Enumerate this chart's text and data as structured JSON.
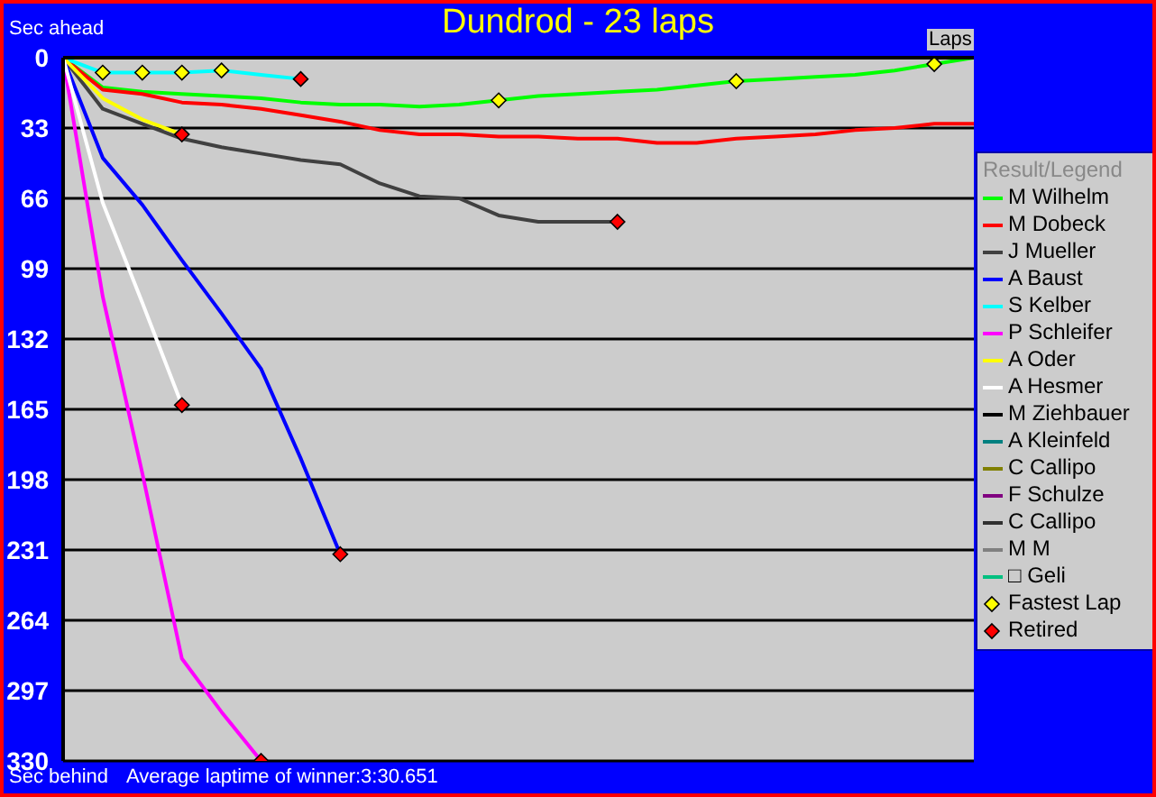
{
  "chart_data": {
    "type": "line",
    "title": "Dundrod - 23 laps",
    "xlabel": "Laps",
    "ylabel": "Sec ahead",
    "legend_title": "Result/Legend",
    "annotations": [
      "Sec behind",
      "Average laptime of winner:3:30.651"
    ],
    "categories": [
      null,
      null,
      null,
      null,
      null,
      null,
      null,
      null,
      null,
      null,
      null,
      null,
      null,
      null,
      null,
      null,
      null,
      null,
      null,
      null,
      null,
      null,
      null,
      null
    ],
    "ylim": [
      330,
      0
    ],
    "yticks": [
      0,
      33,
      66,
      99,
      132,
      165,
      198,
      231,
      264,
      297,
      330
    ],
    "grid": "y",
    "legend": "right",
    "tick_labels": "y",
    "marker": "none",
    "line_style": "solid",
    "series": [
      {
        "name": "M Wilhelm",
        "color": "#00ff00",
        "values": [
          0,
          14,
          16,
          17,
          18,
          19,
          21,
          22,
          22,
          23,
          22,
          20,
          18,
          17,
          16,
          15,
          13,
          11,
          10,
          9,
          8,
          6,
          3,
          0
        ]
      },
      {
        "name": "M Dobeck",
        "color": "#ff0000",
        "values": [
          0,
          15,
          17,
          21,
          22,
          24,
          27,
          30,
          34,
          36,
          36,
          37,
          37,
          38,
          38,
          40,
          40,
          38,
          37,
          36,
          34,
          33,
          31,
          31
        ]
      },
      {
        "name": "J Mueller",
        "color": "#404040",
        "values": [
          0,
          24,
          31,
          38,
          42,
          45,
          48,
          50,
          59,
          65,
          66,
          74,
          77,
          77,
          77,
          null,
          null,
          null,
          null,
          null,
          null,
          null,
          null,
          null
        ]
      },
      {
        "name": "A Baust",
        "color": "#0000ff",
        "values": [
          0,
          47,
          69,
          95,
          120,
          146,
          188,
          233,
          null,
          null,
          null,
          null,
          null,
          null,
          null,
          null,
          null,
          null,
          null,
          null,
          null,
          null,
          null,
          null
        ]
      },
      {
        "name": "S Kelber",
        "color": "#00ffff",
        "values": [
          0,
          7,
          7,
          7,
          6,
          8,
          10,
          null,
          null,
          null,
          null,
          null,
          null,
          null,
          null,
          null,
          null,
          null,
          null,
          null,
          null,
          null,
          null,
          null
        ]
      },
      {
        "name": "P Schleifer",
        "color": "#ff00ff",
        "values": [
          0,
          112,
          195,
          282,
          307,
          330,
          null,
          null,
          null,
          null,
          null,
          null,
          null,
          null,
          null,
          null,
          null,
          null,
          null,
          null,
          null,
          null,
          null,
          null
        ]
      },
      {
        "name": "A Oder",
        "color": "#ffff00",
        "values": [
          0,
          19,
          29,
          36,
          null,
          null,
          null,
          null,
          null,
          null,
          null,
          null,
          null,
          null,
          null,
          null,
          null,
          null,
          null,
          null,
          null,
          null,
          null,
          null
        ]
      },
      {
        "name": "A Hesmer",
        "color": "#ffffff",
        "values": [
          0,
          68,
          115,
          163,
          null,
          null,
          null,
          null,
          null,
          null,
          null,
          null,
          null,
          null,
          null,
          null,
          null,
          null,
          null,
          null,
          null,
          null,
          null,
          null
        ]
      },
      {
        "name": "M Ziehbauer",
        "color": "#000000",
        "values": [
          null,
          null,
          null,
          null,
          null,
          null,
          null,
          null,
          null,
          null,
          null,
          null,
          null,
          null,
          null,
          null,
          null,
          null,
          null,
          null,
          null,
          null,
          null,
          null
        ]
      },
      {
        "name": "A Kleinfeld",
        "color": "#008080",
        "values": [
          null,
          null,
          null,
          null,
          null,
          null,
          null,
          null,
          null,
          null,
          null,
          null,
          null,
          null,
          null,
          null,
          null,
          null,
          null,
          null,
          null,
          null,
          null,
          null
        ]
      },
      {
        "name": "C Callipo",
        "color": "#808000",
        "values": [
          null,
          null,
          null,
          null,
          null,
          null,
          null,
          null,
          null,
          null,
          null,
          null,
          null,
          null,
          null,
          null,
          null,
          null,
          null,
          null,
          null,
          null,
          null,
          null
        ]
      },
      {
        "name": "F Schulze",
        "color": "#800080",
        "values": [
          null,
          null,
          null,
          null,
          null,
          null,
          null,
          null,
          null,
          null,
          null,
          null,
          null,
          null,
          null,
          null,
          null,
          null,
          null,
          null,
          null,
          null,
          null,
          null
        ]
      },
      {
        "name": "C Callipo",
        "color": "#303030",
        "values": [
          null,
          null,
          null,
          null,
          null,
          null,
          null,
          null,
          null,
          null,
          null,
          null,
          null,
          null,
          null,
          null,
          null,
          null,
          null,
          null,
          null,
          null,
          null,
          null
        ]
      },
      {
        "name": "M M",
        "color": "#808080",
        "values": [
          null,
          null,
          null,
          null,
          null,
          null,
          null,
          null,
          null,
          null,
          null,
          null,
          null,
          null,
          null,
          null,
          null,
          null,
          null,
          null,
          null,
          null,
          null,
          null
        ]
      },
      {
        "name": "□ Geli",
        "color": "#00c080",
        "values": [
          null,
          null,
          null,
          null,
          null,
          null,
          null,
          null,
          null,
          null,
          null,
          null,
          null,
          null,
          null,
          null,
          null,
          null,
          null,
          null,
          null,
          null,
          null,
          null
        ]
      },
      {
        "name": "Fastest Lap",
        "type": "scatter",
        "marker": "diamond",
        "color": "#ffff00",
        "values": [
          null,
          7,
          7,
          7,
          6,
          null,
          null,
          null,
          null,
          null,
          null,
          20,
          null,
          null,
          null,
          null,
          null,
          11,
          null,
          null,
          null,
          null,
          3,
          null
        ]
      },
      {
        "name": "Retired",
        "type": "scatter",
        "marker": "diamond",
        "color": "#ff0000",
        "values": [
          null,
          null,
          null,
          36,
          null,
          330,
          10,
          233,
          null,
          null,
          null,
          null,
          null,
          null,
          77,
          null,
          null,
          null,
          null,
          null,
          null,
          null,
          null,
          null
        ]
      },
      {
        "type": "scatter",
        "marker": "diamond",
        "color": "#ff0000",
        "values": [
          null,
          null,
          null,
          163,
          null,
          null,
          null,
          null,
          null,
          null,
          null,
          null,
          null,
          null,
          null,
          null,
          null,
          null,
          null,
          null,
          null,
          null,
          null,
          null
        ]
      }
    ]
  }
}
